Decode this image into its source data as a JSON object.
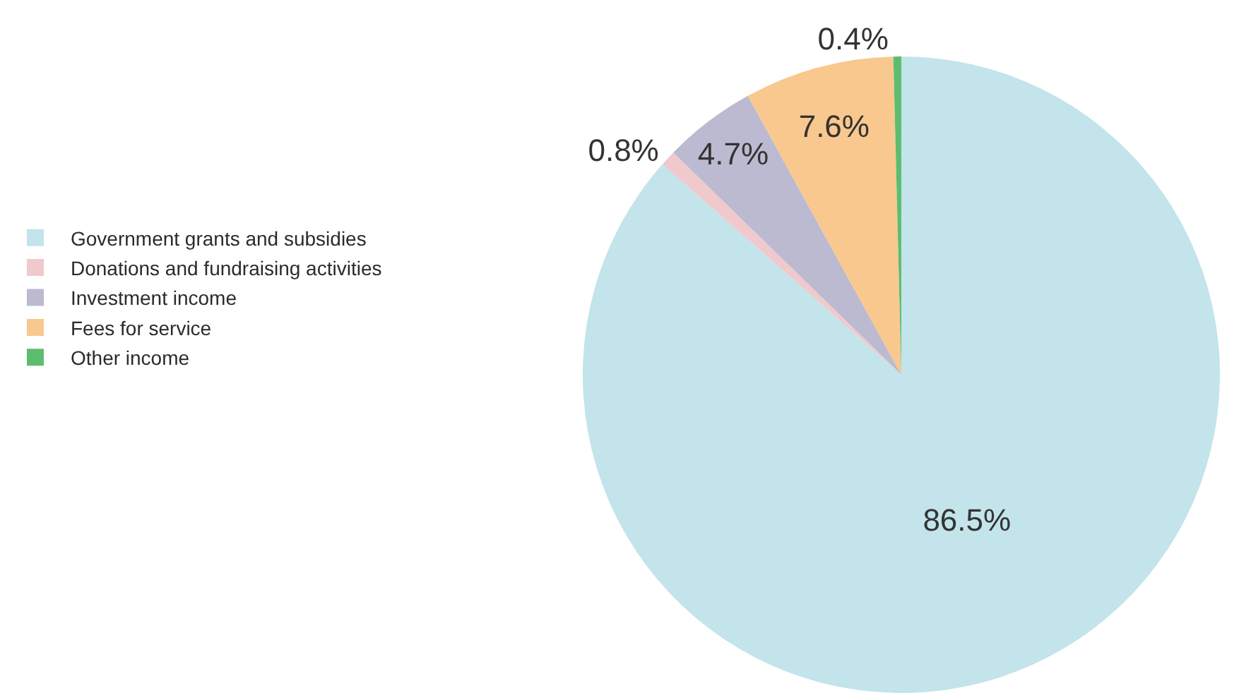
{
  "chart_data": {
    "type": "pie",
    "categories": [
      "Government grants and subsidies",
      "Donations and fundraising activities",
      "Investment income",
      "Fees for service",
      "Other income"
    ],
    "values": [
      86.5,
      0.8,
      4.7,
      7.6,
      0.4
    ],
    "colors": [
      "#c2e4ea",
      "#f0c9cc",
      "#bbbad0",
      "#f8c88e",
      "#5dbd6f"
    ],
    "value_labels": [
      "86.5%",
      "0.8%",
      "4.7%",
      "7.6%",
      "0.4%"
    ],
    "legend": "left"
  }
}
